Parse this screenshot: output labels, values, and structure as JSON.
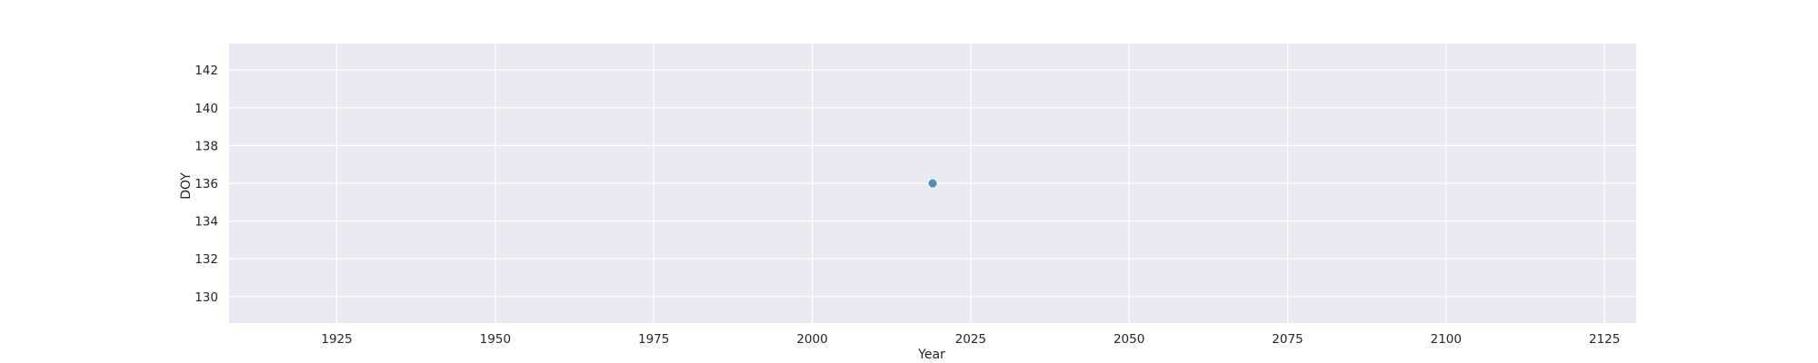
{
  "chart_data": {
    "type": "scatter",
    "title": "",
    "xlabel": "Year",
    "ylabel": "DOY",
    "xlim": [
      1908,
      2130
    ],
    "ylim": [
      128.6,
      143.4
    ],
    "xticks": [
      1925,
      1950,
      1975,
      2000,
      2025,
      2050,
      2075,
      2100,
      2125
    ],
    "yticks": [
      130,
      132,
      134,
      136,
      138,
      140,
      142
    ],
    "grid": true,
    "legend": "none",
    "series": [
      {
        "color": "#3a84bb",
        "points": [
          {
            "x": 2019,
            "y": 136
          }
        ]
      }
    ],
    "colors": {
      "background": "#eaeaf2",
      "grid": "#ffffff",
      "marker": "#3a84bb"
    }
  }
}
